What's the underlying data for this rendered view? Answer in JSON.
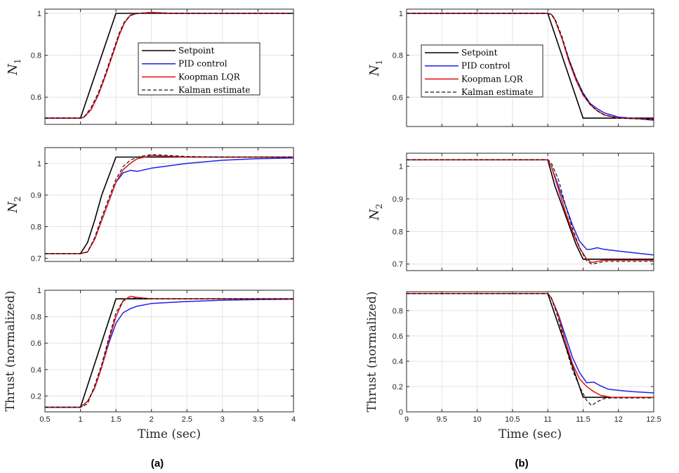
{
  "colors": {
    "setpoint": "#000000",
    "pid": "#1f1fe6",
    "lqr": "#e61a1a",
    "kalman": "#000000",
    "grid": "#e3e3e3"
  },
  "legend": [
    "Setpoint",
    "PID control",
    "Koopman LQR",
    "Kalman estimate"
  ],
  "captions": [
    "(a)",
    "(b)"
  ],
  "chart_data": [
    {
      "id": "a-N1",
      "type": "line",
      "ylabel": "N",
      "ylabel_sub": "1",
      "xlim": [
        0.5,
        4
      ],
      "ylim": [
        0.47,
        1.02
      ],
      "xticks": [
        0.5,
        1,
        1.5,
        2,
        2.5,
        3,
        3.5,
        4
      ],
      "xtick_labels": [
        "",
        "",
        "",
        "",
        "",
        "",
        "",
        ""
      ],
      "yticks": [
        0.6,
        0.8,
        1
      ],
      "ytick_labels": [
        "0.6",
        "0.8",
        "1"
      ],
      "xlabel": "",
      "legend": "top-right",
      "series": [
        {
          "name": "Setpoint",
          "x": [
            0.5,
            1.0,
            1.5,
            4.0
          ],
          "y": [
            0.5,
            0.5,
            1.0,
            1.0
          ]
        },
        {
          "name": "PID control",
          "x": [
            0.5,
            1.0,
            1.05,
            1.15,
            1.25,
            1.35,
            1.45,
            1.55,
            1.62,
            1.7,
            1.8,
            2.0,
            2.3,
            4.0
          ],
          "y": [
            0.5,
            0.5,
            0.505,
            0.54,
            0.61,
            0.7,
            0.8,
            0.9,
            0.955,
            0.99,
            1.0,
            1.003,
            1.0,
            1.0
          ]
        },
        {
          "name": "Koopman LQR",
          "x": [
            0.5,
            1.0,
            1.05,
            1.15,
            1.25,
            1.35,
            1.45,
            1.55,
            1.62,
            1.7,
            1.8,
            2.0,
            2.3,
            4.0
          ],
          "y": [
            0.5,
            0.5,
            0.505,
            0.54,
            0.61,
            0.7,
            0.8,
            0.9,
            0.955,
            0.99,
            1.0,
            1.005,
            1.0,
            1.0
          ]
        },
        {
          "name": "Kalman estimate",
          "x": [
            0.5,
            1.0,
            1.05,
            1.15,
            1.25,
            1.35,
            1.45,
            1.55,
            1.62,
            1.7,
            1.8,
            2.0,
            2.3,
            4.0
          ],
          "y": [
            0.5,
            0.5,
            0.505,
            0.55,
            0.62,
            0.71,
            0.81,
            0.91,
            0.96,
            0.99,
            1.0,
            1.0,
            1.0,
            1.0
          ]
        }
      ]
    },
    {
      "id": "a-N2",
      "type": "line",
      "ylabel": "N",
      "ylabel_sub": "2",
      "xlim": [
        0.5,
        4
      ],
      "ylim": [
        0.69,
        1.05
      ],
      "xticks": [
        0.5,
        1,
        1.5,
        2,
        2.5,
        3,
        3.5,
        4
      ],
      "xtick_labels": [
        "",
        "",
        "",
        "",
        "",
        "",
        "",
        ""
      ],
      "yticks": [
        0.7,
        0.8,
        0.9,
        1
      ],
      "ytick_labels": [
        "0.7",
        "0.8",
        "0.9",
        "1"
      ],
      "xlabel": "",
      "series": [
        {
          "name": "Setpoint",
          "x": [
            0.5,
            1.0,
            1.1,
            1.2,
            1.3,
            1.4,
            1.5,
            4.0
          ],
          "y": [
            0.715,
            0.715,
            0.75,
            0.82,
            0.9,
            0.96,
            1.02,
            1.02
          ]
        },
        {
          "name": "PID control",
          "x": [
            0.5,
            1.0,
            1.1,
            1.2,
            1.3,
            1.4,
            1.5,
            1.6,
            1.7,
            1.8,
            2.0,
            2.5,
            3.0,
            3.5,
            4.0
          ],
          "y": [
            0.715,
            0.715,
            0.72,
            0.76,
            0.82,
            0.88,
            0.94,
            0.97,
            0.978,
            0.975,
            0.985,
            1.0,
            1.01,
            1.015,
            1.017
          ]
        },
        {
          "name": "Koopman LQR",
          "x": [
            0.5,
            1.0,
            1.1,
            1.2,
            1.3,
            1.4,
            1.5,
            1.6,
            1.7,
            1.8,
            2.0,
            2.5,
            3.0,
            4.0
          ],
          "y": [
            0.715,
            0.715,
            0.72,
            0.76,
            0.82,
            0.88,
            0.94,
            0.98,
            1.0,
            1.015,
            1.025,
            1.02,
            1.02,
            1.02
          ]
        },
        {
          "name": "Kalman estimate",
          "x": [
            0.5,
            1.0,
            1.1,
            1.2,
            1.3,
            1.4,
            1.5,
            1.6,
            1.7,
            1.8,
            2.0,
            2.5,
            3.0,
            4.0
          ],
          "y": [
            0.715,
            0.715,
            0.72,
            0.765,
            0.83,
            0.89,
            0.95,
            0.99,
            1.01,
            1.02,
            1.028,
            1.022,
            1.02,
            1.02
          ]
        }
      ]
    },
    {
      "id": "a-thrust",
      "type": "line",
      "ylabel": "Thrust (normalized)",
      "ylabel_sub": "",
      "xlim": [
        0.5,
        4
      ],
      "ylim": [
        0.08,
        1.0
      ],
      "xticks": [
        0.5,
        1,
        1.5,
        2,
        2.5,
        3,
        3.5,
        4
      ],
      "xtick_labels": [
        "0.5",
        "1",
        "1.5",
        "2",
        "2.5",
        "3",
        "3.5",
        "4"
      ],
      "yticks": [
        0.2,
        0.4,
        0.6,
        0.8,
        1
      ],
      "ytick_labels": [
        "0.2",
        "0.4",
        "0.6",
        "0.8",
        "1"
      ],
      "xlabel": "Time (sec)",
      "series": [
        {
          "name": "Setpoint",
          "x": [
            0.5,
            1.0,
            1.5,
            4.0
          ],
          "y": [
            0.115,
            0.115,
            0.935,
            0.935
          ]
        },
        {
          "name": "PID control",
          "x": [
            0.5,
            1.0,
            1.1,
            1.2,
            1.3,
            1.4,
            1.5,
            1.6,
            1.7,
            1.8,
            2.0,
            2.5,
            3.0,
            3.5,
            4.0
          ],
          "y": [
            0.115,
            0.115,
            0.16,
            0.26,
            0.42,
            0.6,
            0.75,
            0.83,
            0.86,
            0.88,
            0.9,
            0.915,
            0.925,
            0.93,
            0.932
          ]
        },
        {
          "name": "Koopman LQR",
          "x": [
            0.5,
            1.0,
            1.1,
            1.2,
            1.3,
            1.4,
            1.5,
            1.6,
            1.7,
            1.8,
            2.0,
            2.5,
            4.0
          ],
          "y": [
            0.115,
            0.115,
            0.16,
            0.26,
            0.42,
            0.62,
            0.8,
            0.92,
            0.955,
            0.945,
            0.935,
            0.935,
            0.935
          ]
        },
        {
          "name": "Kalman estimate",
          "x": [
            0.5,
            1.0,
            1.1,
            1.2,
            1.3,
            1.4,
            1.5,
            1.6,
            1.7,
            1.8,
            2.0,
            2.5,
            4.0
          ],
          "y": [
            0.115,
            0.115,
            0.14,
            0.28,
            0.44,
            0.64,
            0.83,
            0.92,
            0.94,
            0.94,
            0.935,
            0.935,
            0.935
          ]
        }
      ]
    },
    {
      "id": "b-N1",
      "type": "line",
      "ylabel": "N",
      "ylabel_sub": "1",
      "xlim": [
        9,
        12.5
      ],
      "ylim": [
        0.46,
        1.02
      ],
      "xticks": [
        9,
        9.5,
        10,
        10.5,
        11,
        11.5,
        12,
        12.5
      ],
      "xtick_labels": [
        "",
        "",
        "",
        "",
        "",
        "",
        "",
        ""
      ],
      "yticks": [
        0.6,
        0.8,
        1
      ],
      "ytick_labels": [
        "0.6",
        "0.8",
        "1"
      ],
      "xlabel": "",
      "legend": "top-left",
      "series": [
        {
          "name": "Setpoint",
          "x": [
            9,
            11.0,
            11.5,
            12.5
          ],
          "y": [
            1.0,
            1.0,
            0.5,
            0.5
          ]
        },
        {
          "name": "PID control",
          "x": [
            9,
            11.0,
            11.05,
            11.1,
            11.2,
            11.3,
            11.4,
            11.5,
            11.6,
            11.7,
            11.8,
            12.0,
            12.2,
            12.5
          ],
          "y": [
            1.0,
            1.0,
            0.995,
            0.97,
            0.88,
            0.78,
            0.69,
            0.62,
            0.57,
            0.545,
            0.525,
            0.505,
            0.5,
            0.49
          ]
        },
        {
          "name": "Koopman LQR",
          "x": [
            9,
            11.0,
            11.05,
            11.1,
            11.2,
            11.3,
            11.4,
            11.5,
            11.6,
            11.7,
            11.8,
            12.0,
            12.2,
            12.5
          ],
          "y": [
            1.0,
            1.0,
            0.995,
            0.97,
            0.88,
            0.77,
            0.68,
            0.61,
            0.565,
            0.535,
            0.515,
            0.5,
            0.498,
            0.495
          ]
        },
        {
          "name": "Kalman estimate",
          "x": [
            9,
            11.0,
            11.05,
            11.1,
            11.2,
            11.3,
            11.4,
            11.5,
            11.6,
            11.7,
            11.8,
            12.0,
            12.2,
            12.5
          ],
          "y": [
            1.0,
            1.0,
            0.995,
            0.975,
            0.89,
            0.78,
            0.69,
            0.615,
            0.565,
            0.535,
            0.515,
            0.5,
            0.498,
            0.495
          ]
        }
      ]
    },
    {
      "id": "b-N2",
      "type": "line",
      "ylabel": "N",
      "ylabel_sub": "2",
      "xlim": [
        9,
        12.5
      ],
      "ylim": [
        0.68,
        1.04
      ],
      "xticks": [
        9,
        9.5,
        10,
        10.5,
        11,
        11.5,
        12,
        12.5
      ],
      "xtick_labels": [
        "",
        "",
        "",
        "",
        "",
        "",
        "",
        ""
      ],
      "yticks": [
        0.7,
        0.8,
        0.9,
        1
      ],
      "ytick_labels": [
        "0.7",
        "0.8",
        "0.9",
        "1"
      ],
      "xlabel": "",
      "series": [
        {
          "name": "Setpoint",
          "x": [
            9,
            11.0,
            11.1,
            11.2,
            11.3,
            11.4,
            11.5,
            12.5
          ],
          "y": [
            1.02,
            1.02,
            0.94,
            0.88,
            0.82,
            0.76,
            0.715,
            0.715
          ]
        },
        {
          "name": "PID control",
          "x": [
            9,
            11.0,
            11.05,
            11.15,
            11.25,
            11.35,
            11.45,
            11.55,
            11.6,
            11.7,
            11.8,
            12.0,
            12.2,
            12.5
          ],
          "y": [
            1.02,
            1.02,
            1.0,
            0.94,
            0.88,
            0.82,
            0.77,
            0.745,
            0.745,
            0.75,
            0.745,
            0.74,
            0.735,
            0.728
          ]
        },
        {
          "name": "Koopman LQR",
          "x": [
            9,
            11.0,
            11.05,
            11.15,
            11.25,
            11.35,
            11.45,
            11.55,
            11.62,
            11.7,
            11.8,
            12.0,
            12.5
          ],
          "y": [
            1.02,
            1.02,
            1.0,
            0.93,
            0.86,
            0.8,
            0.75,
            0.715,
            0.705,
            0.708,
            0.712,
            0.712,
            0.712
          ]
        },
        {
          "name": "Kalman estimate",
          "x": [
            9,
            11.0,
            11.05,
            11.15,
            11.25,
            11.35,
            11.45,
            11.55,
            11.62,
            11.7,
            11.8,
            12.0,
            12.5
          ],
          "y": [
            1.02,
            1.02,
            1.01,
            0.96,
            0.88,
            0.81,
            0.75,
            0.71,
            0.7,
            0.703,
            0.708,
            0.708,
            0.708
          ]
        }
      ]
    },
    {
      "id": "b-thrust",
      "type": "line",
      "ylabel": "Thrust (normalized)",
      "ylabel_sub": "",
      "xlim": [
        9,
        12.5
      ],
      "ylim": [
        0,
        0.95
      ],
      "xticks": [
        9,
        9.5,
        10,
        10.5,
        11,
        11.5,
        12,
        12.5
      ],
      "xtick_labels": [
        "9",
        "9.5",
        "10",
        "10.5",
        "11",
        "11.5",
        "12",
        "12.5"
      ],
      "yticks": [
        0,
        0.2,
        0.4,
        0.6,
        0.8
      ],
      "ytick_labels": [
        "0",
        "0.2",
        "0.4",
        "0.6",
        "0.8"
      ],
      "xlabel": "Time (sec)",
      "series": [
        {
          "name": "Setpoint",
          "x": [
            9,
            11.0,
            11.5,
            12.5
          ],
          "y": [
            0.935,
            0.935,
            0.115,
            0.115
          ]
        },
        {
          "name": "PID control",
          "x": [
            9,
            11.0,
            11.05,
            11.15,
            11.25,
            11.35,
            11.45,
            11.55,
            11.65,
            11.75,
            11.85,
            12.0,
            12.2,
            12.5
          ],
          "y": [
            0.935,
            0.935,
            0.9,
            0.77,
            0.6,
            0.43,
            0.31,
            0.23,
            0.235,
            0.205,
            0.18,
            0.17,
            0.16,
            0.15
          ]
        },
        {
          "name": "Koopman LQR",
          "x": [
            9,
            11.0,
            11.05,
            11.15,
            11.25,
            11.35,
            11.45,
            11.55,
            11.65,
            11.75,
            11.9,
            12.0,
            12.5
          ],
          "y": [
            0.935,
            0.935,
            0.9,
            0.76,
            0.56,
            0.38,
            0.26,
            0.2,
            0.16,
            0.13,
            0.115,
            0.115,
            0.115
          ]
        },
        {
          "name": "Kalman estimate",
          "x": [
            9,
            11.0,
            11.05,
            11.15,
            11.25,
            11.35,
            11.45,
            11.55,
            11.62,
            11.7,
            11.8,
            11.9,
            12.0,
            12.5
          ],
          "y": [
            0.935,
            0.935,
            0.9,
            0.74,
            0.52,
            0.33,
            0.2,
            0.09,
            0.05,
            0.08,
            0.105,
            0.11,
            0.11,
            0.11
          ]
        }
      ]
    }
  ]
}
